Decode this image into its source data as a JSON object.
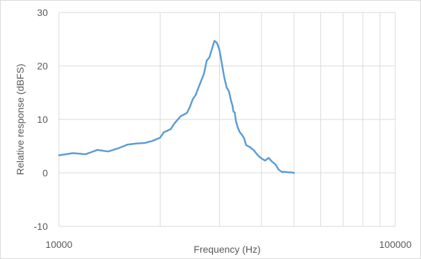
{
  "chart_data": {
    "type": "line",
    "title": "",
    "xlabel": "Frequency (Hz)",
    "ylabel": "Relative response (dBFS)",
    "x_scale": "log",
    "xlim": [
      10000,
      100000
    ],
    "ylim": [
      -10,
      30
    ],
    "x_tick_labels": [
      "10000",
      "100000"
    ],
    "y_tick_labels": [
      "30",
      "20",
      "10",
      "0",
      "-10"
    ],
    "grid": true,
    "legend": "none",
    "series": [
      {
        "color": "#5b9bd5",
        "x": [
          10000,
          10500,
          11000,
          12000,
          13000,
          14000,
          15000,
          16000,
          17000,
          18000,
          19000,
          20000,
          20500,
          21000,
          21500,
          22000,
          23000,
          24000,
          24500,
          25000,
          25500,
          26000,
          27000,
          27500,
          28000,
          28500,
          29000,
          29500,
          30000,
          31000,
          31500,
          32000,
          32500,
          32800,
          33000,
          33300,
          33600,
          34000,
          34500,
          35000,
          35500,
          36000,
          37000,
          37500,
          38000,
          39000,
          40000,
          41000,
          42000,
          43000,
          44000,
          45000,
          46000,
          47000,
          48000,
          49000,
          50000
        ],
        "y": [
          3.3,
          3.5,
          3.7,
          3.5,
          4.3,
          4.0,
          4.6,
          5.3,
          5.5,
          5.6,
          6.0,
          6.6,
          7.6,
          7.9,
          8.2,
          9.2,
          10.6,
          11.2,
          12.3,
          13.8,
          14.6,
          16.0,
          18.6,
          21.0,
          21.6,
          23.2,
          24.7,
          24.3,
          23.0,
          17.9,
          16.0,
          15.3,
          13.4,
          12.6,
          11.5,
          11.3,
          9.6,
          8.5,
          7.6,
          7.1,
          6.5,
          5.2,
          4.8,
          4.5,
          4.2,
          3.3,
          2.7,
          2.3,
          2.8,
          2.1,
          1.6,
          0.6,
          0.2,
          0.2,
          0.1,
          0.1,
          0.0
        ]
      }
    ]
  }
}
